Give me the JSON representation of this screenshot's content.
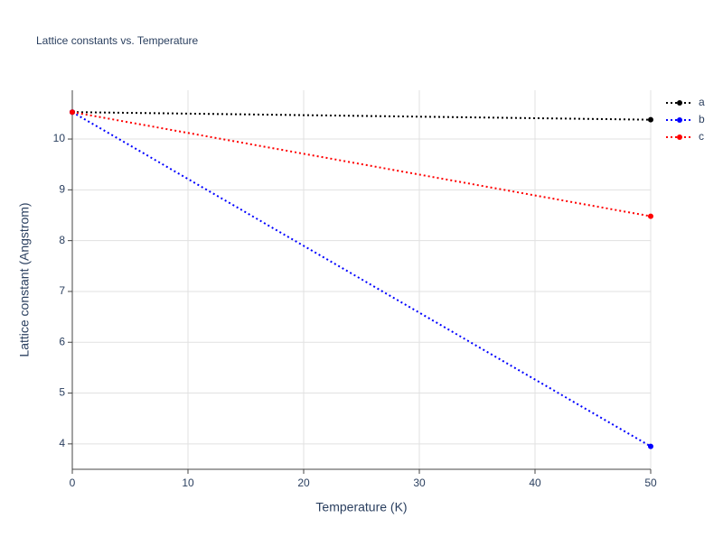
{
  "chart_data": {
    "type": "line",
    "title": "Lattice constants vs. Temperature",
    "x_label": "Temperature (K)",
    "y_label": "Lattice constant (Angstrom)",
    "x": [
      0,
      50
    ],
    "series": [
      {
        "name": "a",
        "color": "#000000",
        "values": [
          10.53,
          10.38
        ]
      },
      {
        "name": "b",
        "color": "#0000ff",
        "values": [
          10.53,
          3.95
        ]
      },
      {
        "name": "c",
        "color": "#ff0000",
        "values": [
          10.53,
          8.48
        ]
      }
    ],
    "xlim": [
      0,
      50
    ],
    "xticks": [
      0,
      10,
      20,
      30,
      40,
      50
    ],
    "ylim": [
      3.5,
      10.96
    ],
    "yticks": [
      4,
      5,
      6,
      7,
      8,
      9,
      10
    ],
    "grid": true,
    "legend": "top-right"
  }
}
